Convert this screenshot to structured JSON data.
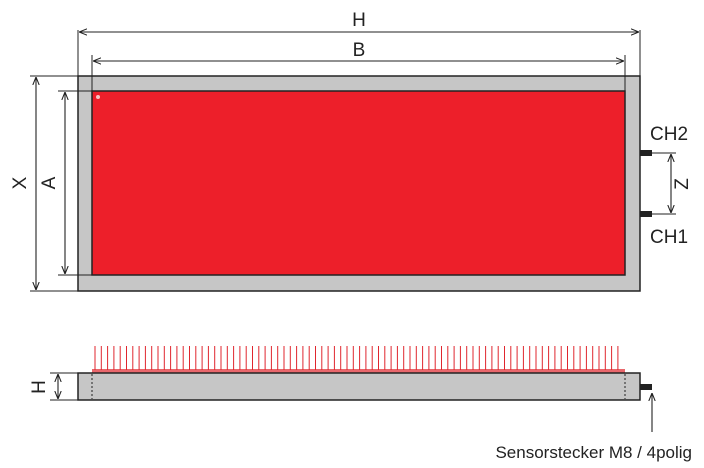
{
  "labels": {
    "h_outer": "H",
    "b_inner": "B",
    "x_outer": "X",
    "a_inner": "A",
    "z_spacing": "Z",
    "ch2": "CH2",
    "ch1": "CH1",
    "h_side": "H",
    "connector_note": "Sensorstecker M8 / 4polig"
  },
  "colors": {
    "frame": "#c6c6c6",
    "active_area": "#ed1f2a",
    "outline": "#222222",
    "beams": "#e0262e",
    "indicator": "#f6c4c4"
  }
}
